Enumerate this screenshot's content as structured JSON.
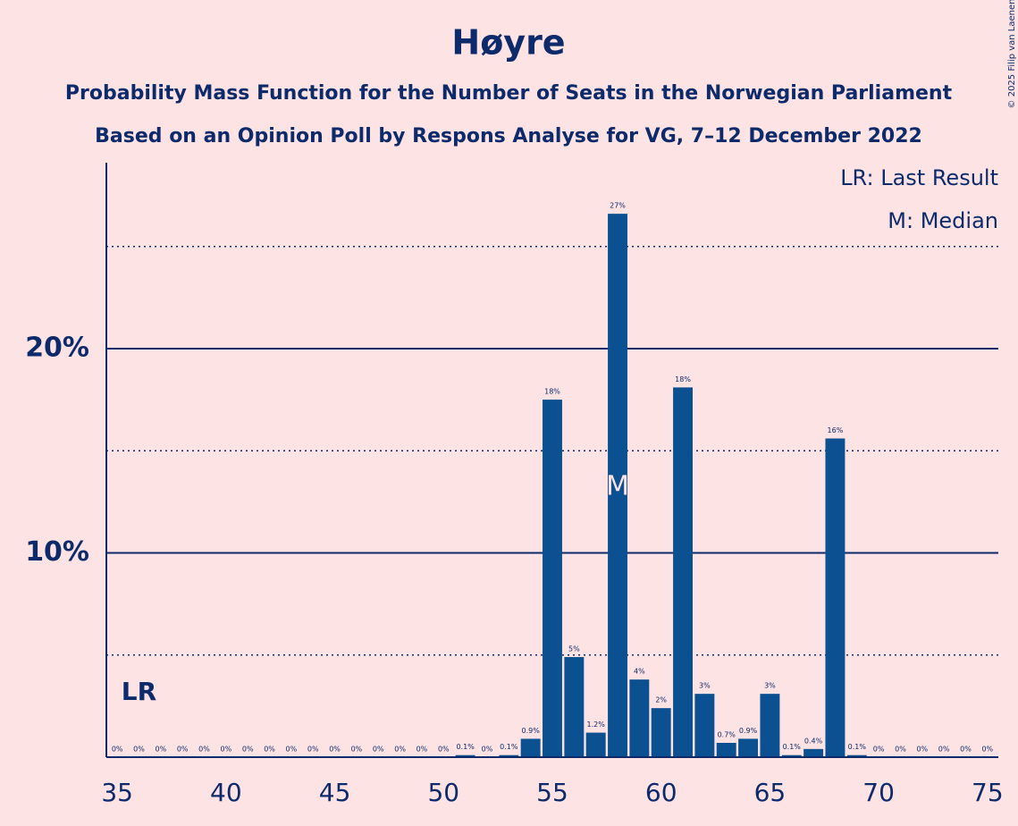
{
  "chart_data": {
    "type": "bar",
    "title": "Høyre",
    "subtitle": [
      "Probability Mass Function for the Number of Seats in the Norwegian Parliament",
      "Based on an Opinion Poll by Respons Analyse for VG, 7–12 December 2022"
    ],
    "copyright": "© 2025 Filip van Laenen",
    "x": [
      35,
      36,
      37,
      38,
      39,
      40,
      41,
      42,
      43,
      44,
      45,
      46,
      47,
      48,
      49,
      50,
      51,
      52,
      53,
      54,
      55,
      56,
      57,
      58,
      59,
      60,
      61,
      62,
      63,
      64,
      65,
      66,
      67,
      68,
      69,
      70,
      71,
      72,
      73,
      74,
      75
    ],
    "values": [
      0,
      0,
      0,
      0,
      0,
      0,
      0,
      0,
      0,
      0,
      0,
      0,
      0,
      0,
      0,
      0,
      0.1,
      0,
      0.1,
      0.9,
      17.5,
      4.9,
      1.2,
      26.6,
      3.8,
      2.4,
      18.1,
      3.1,
      0.7,
      0.9,
      3.1,
      0.1,
      0.4,
      15.6,
      0.1,
      0,
      0,
      0,
      0,
      0,
      0
    ],
    "value_labels": [
      "0%",
      "0%",
      "0%",
      "0%",
      "0%",
      "0%",
      "0%",
      "0%",
      "0%",
      "0%",
      "0%",
      "0%",
      "0%",
      "0%",
      "0%",
      "0%",
      "0.1%",
      "0%",
      "0.1%",
      "0.9%",
      "18%",
      "5%",
      "1.2%",
      "27%",
      "4%",
      "2%",
      "18%",
      "3%",
      "0.7%",
      "0.9%",
      "3%",
      "0.1%",
      "0.4%",
      "16%",
      "0.1%",
      "0%",
      "0%",
      "0%",
      "0%",
      "0%",
      "0%"
    ],
    "color": "#0b5091",
    "xlim": [
      34.5,
      75.5
    ],
    "xticks": [
      35,
      40,
      45,
      50,
      55,
      60,
      65,
      70,
      75
    ],
    "ylim": [
      0,
      29.1
    ],
    "yticks": [
      {
        "value": 10,
        "label": "10%"
      },
      {
        "value": 20,
        "label": "20%"
      }
    ],
    "minor_yticks": [
      5,
      15,
      25
    ],
    "grid": true,
    "last_result": 36,
    "last_result_label": "LR",
    "median": 58,
    "median_label": "M",
    "legend": [
      "LR: Last Result",
      "M: Median"
    ],
    "legend_position": "top-right"
  }
}
